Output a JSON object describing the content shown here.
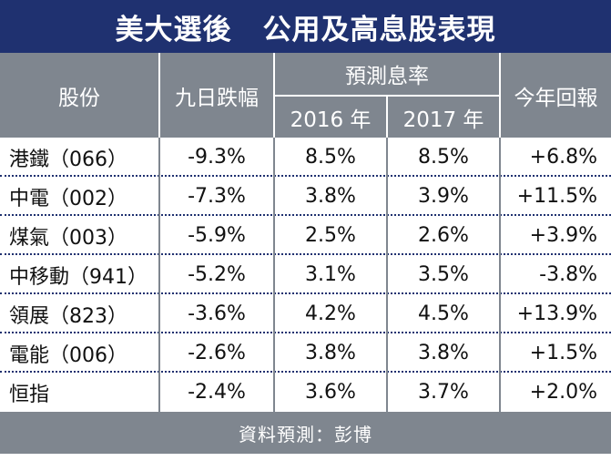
{
  "title": {
    "part1": "美大選後",
    "part2": "公用及高息股表現"
  },
  "header": {
    "stock": "股份",
    "nine_day_drop": "九日跌幅",
    "forecast_yield": "預測息率",
    "year_2016": "2016 年",
    "year_2017": "2017 年",
    "ytd_return": "今年回報"
  },
  "rows": [
    {
      "name": "港鐵（066）",
      "drop": "-9.3%",
      "y2016": "8.5%",
      "y2017": "8.5%",
      "ret": "+6.8%"
    },
    {
      "name": "中電（002）",
      "drop": "-7.3%",
      "y2016": "3.8%",
      "y2017": "3.9%",
      "ret": "+11.5%"
    },
    {
      "name": "煤氣（003）",
      "drop": "-5.9%",
      "y2016": "2.5%",
      "y2017": "2.6%",
      "ret": "+3.9%"
    },
    {
      "name": "中移動（941）",
      "drop": "-5.2%",
      "y2016": "3.1%",
      "y2017": "3.5%",
      "ret": "-3.8%"
    },
    {
      "name": "領展（823）",
      "drop": "-3.6%",
      "y2016": "4.2%",
      "y2017": "4.5%",
      "ret": "+13.9%"
    },
    {
      "name": "電能（006）",
      "drop": "-2.6%",
      "y2016": "3.8%",
      "y2017": "3.8%",
      "ret": "+1.5%"
    },
    {
      "name": "恒指",
      "drop": "-2.4%",
      "y2016": "3.6%",
      "y2017": "3.7%",
      "ret": "+2.0%"
    }
  ],
  "footer": {
    "source": "資料預測：彭博"
  },
  "colors": {
    "title_bg": "#1f3170",
    "header_bg": "#7f868f",
    "separator": "#1f3170"
  }
}
